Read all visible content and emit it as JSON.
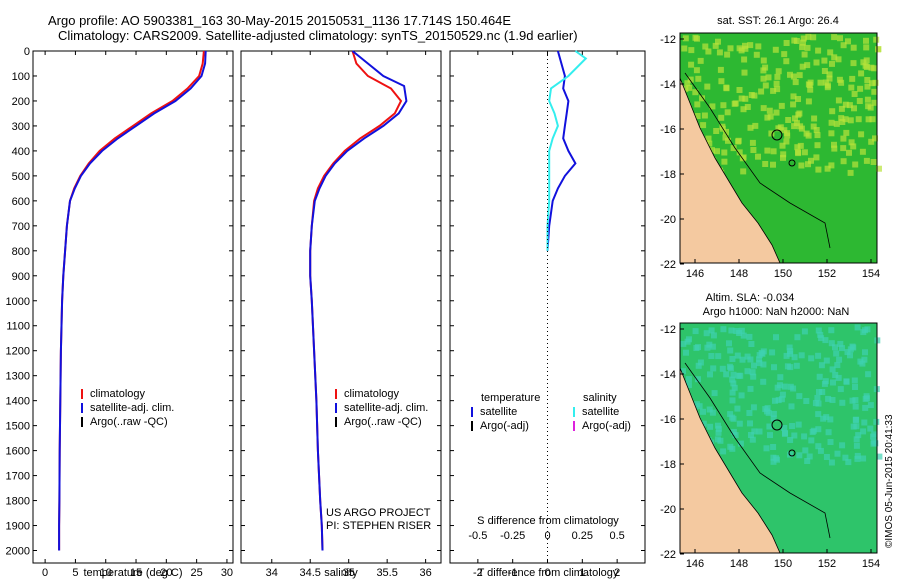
{
  "header": {
    "title_line1": "Argo profile: AO 5903381_163 30-May-2015 20150531_1136 17.714S 150.464E",
    "title_line2": "Climatology: CARS2009. Satellite-adjusted climatology: synTS_20150529.nc (1.9d earlier)"
  },
  "colors": {
    "red": "#e11",
    "blue": "#11d",
    "black": "#000",
    "cyan": "#3ee",
    "magenta": "#d2d",
    "land": "#f4c9a0",
    "sst_green": "#2db832",
    "sst_yellow": "#b8e23a",
    "sla_green": "#2ec46a"
  },
  "chart_data": [
    {
      "type": "line",
      "id": "temperature",
      "xlabel": "temperature (deg C)",
      "xlim": [
        -2,
        31
      ],
      "ylim": [
        2050,
        0
      ],
      "xticks": [
        0,
        5,
        10,
        15,
        20,
        25,
        30
      ],
      "yticks": [
        0,
        100,
        200,
        300,
        400,
        500,
        600,
        700,
        800,
        900,
        1000,
        1100,
        1200,
        1300,
        1400,
        1500,
        1600,
        1700,
        1800,
        1900,
        2000
      ],
      "legend": [
        {
          "label": "climatology",
          "color": "#e11"
        },
        {
          "label": "satellite-adj. clim.",
          "color": "#11d"
        },
        {
          "label": "Argo(..raw -QC)",
          "color": "#000"
        }
      ],
      "series": [
        {
          "name": "climatology",
          "color": "#e11",
          "x": [
            26.2,
            26.0,
            25.4,
            23.5,
            21.0,
            17.5,
            14.5,
            11.5,
            9.0,
            7.2,
            5.8,
            4.8,
            4.1,
            3.6,
            3.3,
            3.0,
            2.8,
            2.6,
            2.5,
            2.4,
            2.35,
            2.3,
            2.3
          ],
          "y": [
            0,
            50,
            100,
            150,
            200,
            250,
            300,
            350,
            400,
            450,
            500,
            550,
            600,
            700,
            800,
            900,
            1000,
            1200,
            1400,
            1600,
            1800,
            1900,
            2000
          ]
        },
        {
          "name": "satellite-adj. clim.",
          "color": "#11d",
          "x": [
            26.5,
            26.4,
            25.8,
            24.0,
            21.5,
            18.0,
            15.0,
            12.0,
            9.4,
            7.4,
            5.9,
            4.9,
            4.1,
            3.6,
            3.3,
            3.0,
            2.8,
            2.6,
            2.5,
            2.4,
            2.35,
            2.3,
            2.3
          ],
          "y": [
            0,
            50,
            100,
            150,
            200,
            250,
            300,
            350,
            400,
            450,
            500,
            550,
            600,
            700,
            800,
            900,
            1000,
            1200,
            1400,
            1600,
            1800,
            1900,
            2000
          ]
        }
      ]
    },
    {
      "type": "line",
      "id": "salinity",
      "xlabel": "salinity",
      "xlim": [
        33.6,
        36.2
      ],
      "ylim": [
        2050,
        0
      ],
      "xticks": [
        34,
        34.5,
        35,
        35.5,
        36
      ],
      "legend": [
        {
          "label": "climatology",
          "color": "#e11"
        },
        {
          "label": "satellite-adj. clim.",
          "color": "#11d"
        },
        {
          "label": "Argo(..raw -QC)",
          "color": "#000"
        }
      ],
      "annotation": [
        "US ARGO PROJECT",
        "PI: STEPHEN RISER"
      ],
      "series": [
        {
          "name": "climatology",
          "color": "#e11",
          "x": [
            35.05,
            35.1,
            35.25,
            35.55,
            35.68,
            35.6,
            35.4,
            35.15,
            34.95,
            34.8,
            34.68,
            34.6,
            34.55,
            34.52,
            34.5,
            34.5,
            34.52,
            34.55,
            34.58,
            34.6,
            34.63,
            34.65,
            34.66
          ],
          "y": [
            0,
            50,
            100,
            150,
            200,
            250,
            300,
            350,
            400,
            450,
            500,
            550,
            600,
            700,
            800,
            900,
            1000,
            1200,
            1400,
            1600,
            1800,
            1900,
            2000
          ]
        },
        {
          "name": "satellite-adj. clim.",
          "color": "#11d",
          "x": [
            35.05,
            35.25,
            35.45,
            35.72,
            35.75,
            35.65,
            35.45,
            35.2,
            34.98,
            34.82,
            34.7,
            34.62,
            34.56,
            34.52,
            34.5,
            34.5,
            34.52,
            34.55,
            34.58,
            34.6,
            34.63,
            34.65,
            34.66
          ],
          "y": [
            0,
            50,
            100,
            140,
            200,
            250,
            300,
            350,
            400,
            450,
            500,
            550,
            600,
            700,
            800,
            900,
            1000,
            1200,
            1400,
            1600,
            1800,
            1900,
            2000
          ]
        }
      ]
    },
    {
      "type": "line",
      "id": "difference",
      "xlabel": "T difference from climatology",
      "xlabel_top": "S difference from climatology",
      "xlim": [
        -2.8,
        2.8
      ],
      "ylim": [
        2050,
        0
      ],
      "xticks": [
        -2,
        -1,
        0,
        1,
        2
      ],
      "sticks": [
        -0.5,
        -0.25,
        0,
        0.25,
        0.5
      ],
      "legend_t": {
        "title": "temperature",
        "items": [
          {
            "label": "satellite",
            "color": "#11d"
          },
          {
            "label": "Argo(-adj)",
            "color": "#000"
          }
        ]
      },
      "legend_s": {
        "title": "salinity",
        "items": [
          {
            "label": "satellite",
            "color": "#3ee"
          },
          {
            "label": "Argo(-adj)",
            "color": "#d2d"
          }
        ]
      },
      "series": [
        {
          "name": "T satellite",
          "color": "#11d",
          "x": [
            0.3,
            0.4,
            0.5,
            0.45,
            0.6,
            0.55,
            0.5,
            0.45,
            0.6,
            0.8,
            0.5,
            0.3,
            0.15,
            0.05,
            0.0
          ],
          "y": [
            0,
            50,
            100,
            150,
            200,
            250,
            300,
            350,
            400,
            450,
            500,
            550,
            600,
            700,
            800
          ]
        },
        {
          "name": "S satellite",
          "color": "#3ee",
          "x": [
            0.8,
            1.1,
            0.6,
            0.1,
            0.05,
            0.2,
            0.3,
            0.15,
            0.05,
            0.05,
            0.05,
            0.05,
            0.0,
            0.0
          ],
          "y": [
            0,
            30,
            100,
            150,
            200,
            250,
            300,
            350,
            400,
            450,
            500,
            600,
            700,
            800
          ]
        }
      ]
    }
  ],
  "maps": {
    "sst": {
      "title": "sat. SST: 26.1  Argo: 26.4",
      "lat_ticks": [
        "-12",
        "-14",
        "-16",
        "-18",
        "-20",
        "-22"
      ],
      "lon_ticks": [
        "146",
        "148",
        "150",
        "152",
        "154"
      ]
    },
    "sla": {
      "title_line1": "Altim. SLA: -0.034",
      "title_line2": "Argo h1000: NaN h2000: NaN",
      "lat_ticks": [
        "-12",
        "-14",
        "-16",
        "-18",
        "-20",
        "-22"
      ],
      "lon_ticks": [
        "146",
        "148",
        "150",
        "152",
        "154"
      ]
    }
  },
  "watermark": "©IMOS 05-Jun-2015 20:41:33"
}
